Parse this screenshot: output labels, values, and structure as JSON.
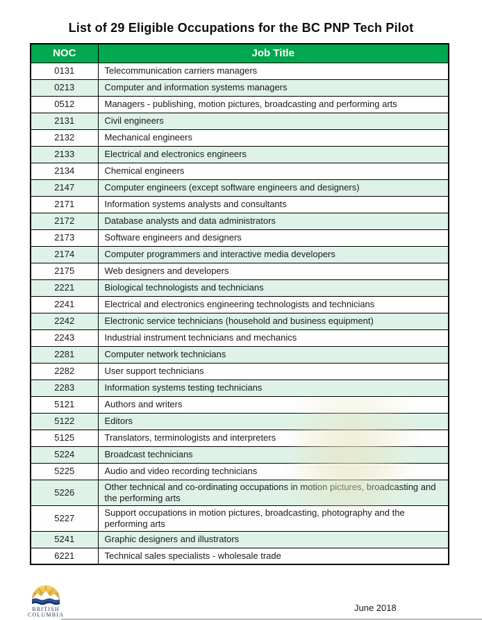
{
  "title": "List of 29 Eligible Occupations for the BC PNP Tech Pilot",
  "table": {
    "headers": [
      "NOC",
      "Job Title"
    ],
    "rows": [
      [
        "0131",
        "Telecommunication carriers managers"
      ],
      [
        "0213",
        "Computer and information systems managers"
      ],
      [
        "0512",
        "Managers - publishing, motion pictures, broadcasting and performing arts"
      ],
      [
        "2131",
        "Civil engineers"
      ],
      [
        "2132",
        "Mechanical engineers"
      ],
      [
        "2133",
        "Electrical and electronics engineers"
      ],
      [
        "2134",
        "Chemical engineers"
      ],
      [
        "2147",
        "Computer engineers (except software engineers and designers)"
      ],
      [
        "2171",
        "Information systems analysts and consultants"
      ],
      [
        "2172",
        "Database analysts and data administrators"
      ],
      [
        "2173",
        "Software engineers and designers"
      ],
      [
        "2174",
        "Computer programmers and interactive media developers"
      ],
      [
        "2175",
        "Web designers and developers"
      ],
      [
        "2221",
        "Biological technologists and technicians"
      ],
      [
        "2241",
        "Electrical and electronics engineering technologists and technicians"
      ],
      [
        "2242",
        "Electronic service technicians (household and business equipment)"
      ],
      [
        "2243",
        "Industrial instrument technicians and mechanics"
      ],
      [
        "2281",
        "Computer network technicians"
      ],
      [
        "2282",
        "User support technicians"
      ],
      [
        "2283",
        "Information systems testing technicians"
      ],
      [
        "5121",
        "Authors and writers"
      ],
      [
        "5122",
        "Editors"
      ],
      [
        "5125",
        "Translators, terminologists and interpreters"
      ],
      [
        "5224",
        "Broadcast technicians"
      ],
      [
        "5225",
        "Audio and video recording technicians"
      ],
      [
        "5226",
        "Other technical and co-ordinating occupations in motion pictures, broadcasting and the performing arts"
      ],
      [
        "5227",
        "Support occupations in motion pictures, broadcasting, photography and the performing arts"
      ],
      [
        "5241",
        "Graphic designers and illustrators"
      ],
      [
        "6221",
        "Technical sales specialists - wholesale trade"
      ]
    ]
  },
  "footer": {
    "logo_line1": "British",
    "logo_line2": "Columbia",
    "date": "June 2018"
  },
  "colors": {
    "header_green": "#00A84F",
    "row_alt_green": "#DFF2E8",
    "border_black": "#000000",
    "logo_blue": "#2B3A64",
    "logo_gold": "#EFBE45"
  }
}
